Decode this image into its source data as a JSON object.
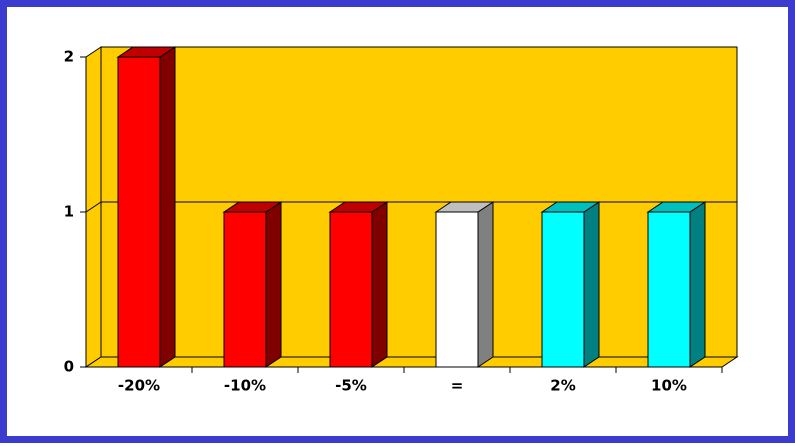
{
  "chart_data": {
    "type": "bar3d",
    "categories": [
      "-20%",
      "-10%",
      "-5%",
      "=",
      "2%",
      "10%"
    ],
    "values": [
      2,
      1,
      1,
      1,
      1,
      1
    ],
    "colors": [
      "#ff0000",
      "#ff0000",
      "#ff0000",
      "#ffffff",
      "#00ffff",
      "#00ffff"
    ],
    "ylim": [
      0,
      2
    ],
    "yticks": [
      0,
      1,
      2
    ],
    "grid": true
  }
}
